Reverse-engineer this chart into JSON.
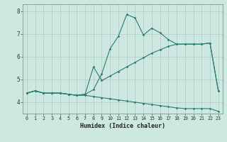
{
  "xlabel": "Humidex (Indice chaleur)",
  "xlim": [
    -0.5,
    23.5
  ],
  "ylim": [
    3.5,
    8.3
  ],
  "bg_color": "#cce8e0",
  "grid_color": "#aaccc4",
  "line_color": "#2d7d6e",
  "line1_x": [
    0,
    1,
    2,
    3,
    4,
    5,
    6,
    7,
    8,
    9,
    10,
    11,
    12,
    13,
    14,
    15,
    16,
    17,
    18,
    19,
    20,
    21,
    22,
    23
  ],
  "line1_y": [
    4.4,
    4.5,
    4.4,
    4.4,
    4.4,
    4.35,
    4.3,
    4.35,
    4.55,
    5.25,
    6.35,
    6.9,
    7.85,
    7.7,
    6.95,
    7.25,
    7.05,
    6.75,
    6.55,
    6.55,
    6.55,
    6.55,
    6.6,
    4.5
  ],
  "line2_x": [
    0,
    1,
    2,
    3,
    4,
    5,
    6,
    7,
    8,
    9,
    10,
    11,
    12,
    13,
    14,
    15,
    16,
    17,
    18,
    19,
    20,
    21,
    22,
    23
  ],
  "line2_y": [
    4.4,
    4.5,
    4.4,
    4.4,
    4.4,
    4.35,
    4.3,
    4.35,
    5.55,
    4.95,
    5.15,
    5.35,
    5.55,
    5.75,
    5.95,
    6.15,
    6.3,
    6.45,
    6.55,
    6.55,
    6.55,
    6.55,
    6.6,
    4.5
  ],
  "line3_x": [
    0,
    1,
    2,
    3,
    4,
    5,
    6,
    7,
    8,
    9,
    10,
    11,
    12,
    13,
    14,
    15,
    16,
    17,
    18,
    19,
    20,
    21,
    22,
    23
  ],
  "line3_y": [
    4.4,
    4.5,
    4.4,
    4.4,
    4.4,
    4.35,
    4.3,
    4.3,
    4.25,
    4.2,
    4.15,
    4.1,
    4.05,
    4.0,
    3.95,
    3.9,
    3.85,
    3.8,
    3.75,
    3.72,
    3.72,
    3.72,
    3.72,
    3.6
  ],
  "xtick_vals": [
    0,
    1,
    2,
    3,
    4,
    5,
    6,
    7,
    8,
    9,
    10,
    11,
    12,
    13,
    14,
    15,
    16,
    17,
    18,
    19,
    20,
    21,
    22,
    23
  ],
  "xtick_labels": [
    "0",
    "1",
    "2",
    "3",
    "4",
    "5",
    "6",
    "7",
    "8",
    "9",
    "10",
    "11",
    "12",
    "13",
    "14",
    "15",
    "16",
    "17",
    "18",
    "19",
    "20",
    "21",
    "22",
    "23"
  ],
  "ytick_vals": [
    4,
    5,
    6,
    7,
    8
  ],
  "ytick_labels": [
    "4",
    "5",
    "6",
    "7",
    "8"
  ]
}
